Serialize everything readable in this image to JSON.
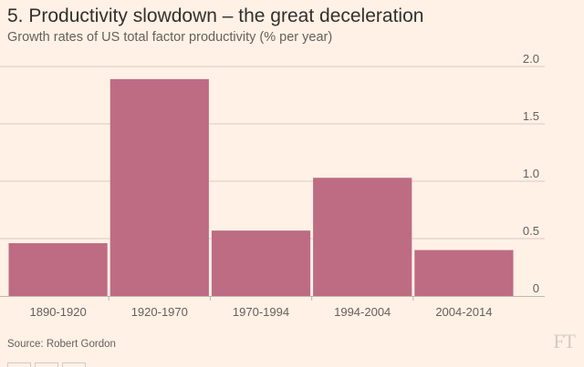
{
  "chart_data": {
    "type": "bar",
    "title": "5. Productivity slowdown – the great deceleration",
    "subtitle": "Growth rates of US total factor productivity (% per year)",
    "categories": [
      "1890-1920",
      "1920-1970",
      "1970-1994",
      "1994-2004",
      "2004-2014"
    ],
    "values": [
      0.46,
      1.89,
      0.57,
      1.03,
      0.4
    ],
    "yticks": [
      "0",
      "0.5",
      "1.0",
      "1.5",
      "2.0"
    ],
    "ytick_values": [
      0,
      0.5,
      1.0,
      1.5,
      2.0
    ],
    "xlabel": "",
    "ylabel": "",
    "ylim": [
      0,
      2.0
    ],
    "bar_color": "#bd6c84",
    "grid_color": "#d9ccc1",
    "source": "Source: Robert Gordon"
  },
  "branding": {
    "logo_text": "FT"
  },
  "colors": {
    "background": "#fff1e5",
    "title": "#33302e",
    "text_muted": "#66605c"
  }
}
